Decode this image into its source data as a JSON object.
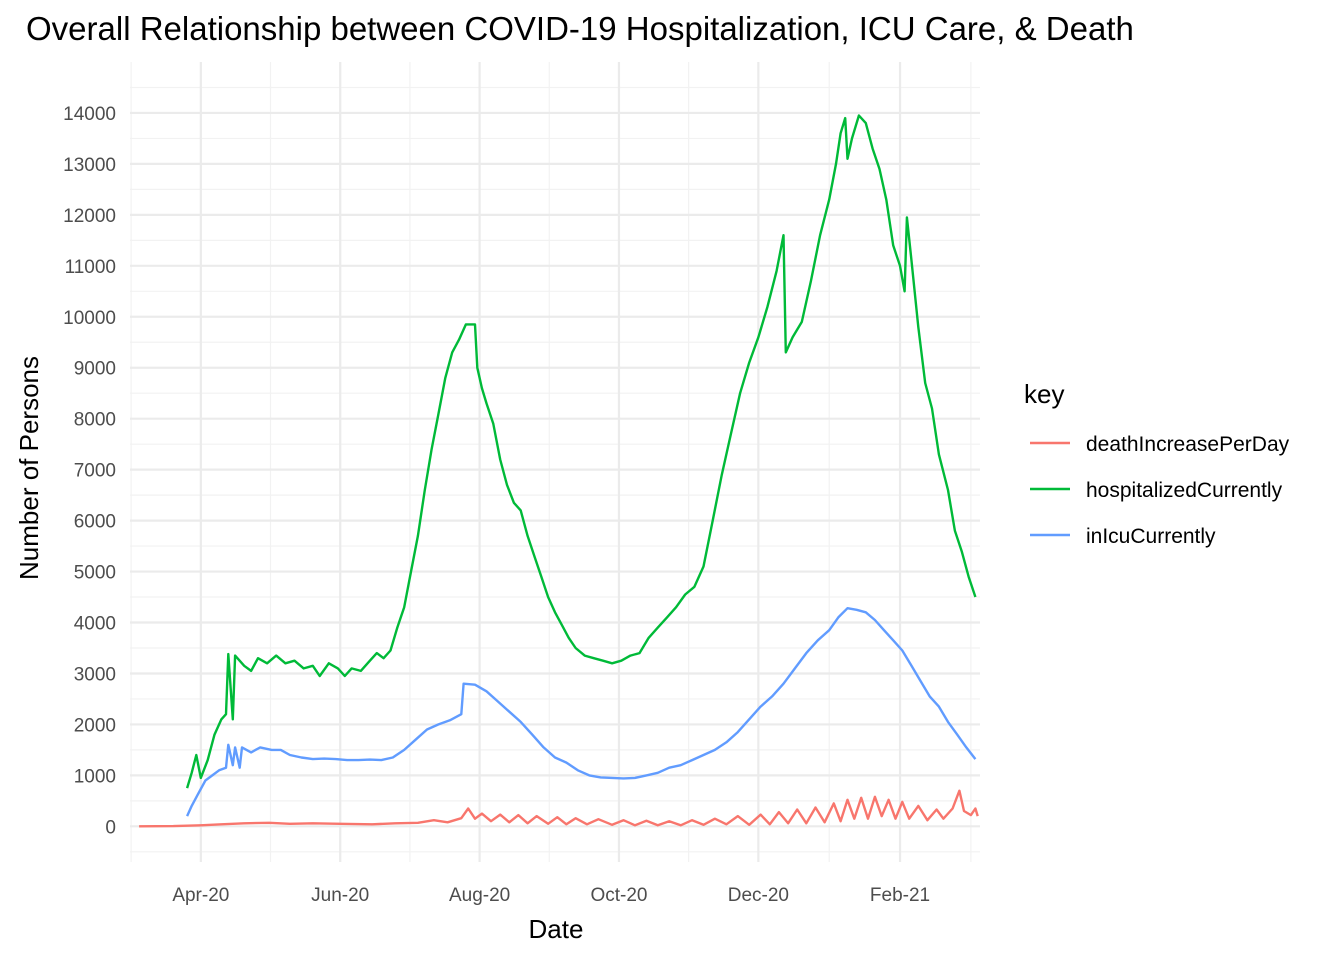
{
  "chart_data": {
    "type": "line",
    "title": "Overall Relationship between COVID-19 Hospitalization, ICU Care, & Death",
    "xlabel": "Date",
    "ylabel": "Number of Persons",
    "x_ticks": [
      "Apr-20",
      "Jun-20",
      "Aug-20",
      "Oct-20",
      "Dec-20",
      "Feb-21"
    ],
    "x_tick_dates": [
      "2020-04-01",
      "2020-06-01",
      "2020-08-01",
      "2020-10-01",
      "2020-12-01",
      "2021-02-01"
    ],
    "xlim": [
      "2020-03-01",
      "2021-03-08"
    ],
    "y_ticks": [
      0,
      1000,
      2000,
      3000,
      4000,
      5000,
      6000,
      7000,
      8000,
      9000,
      10000,
      11000,
      12000,
      13000,
      14000
    ],
    "ylim": [
      -700,
      15000
    ],
    "grid": true,
    "legend": {
      "title": "key",
      "position": "right"
    },
    "series": [
      {
        "name": "deathIncreasePerDay",
        "color": "#F8766D",
        "points": [
          [
            "2020-03-05",
            0
          ],
          [
            "2020-03-20",
            5
          ],
          [
            "2020-04-01",
            20
          ],
          [
            "2020-04-10",
            40
          ],
          [
            "2020-04-20",
            60
          ],
          [
            "2020-05-01",
            70
          ],
          [
            "2020-05-10",
            50
          ],
          [
            "2020-05-20",
            60
          ],
          [
            "2020-06-01",
            50
          ],
          [
            "2020-06-15",
            40
          ],
          [
            "2020-06-25",
            60
          ],
          [
            "2020-07-05",
            70
          ],
          [
            "2020-07-12",
            120
          ],
          [
            "2020-07-18",
            80
          ],
          [
            "2020-07-24",
            160
          ],
          [
            "2020-07-27",
            350
          ],
          [
            "2020-07-30",
            150
          ],
          [
            "2020-08-02",
            250
          ],
          [
            "2020-08-06",
            100
          ],
          [
            "2020-08-10",
            230
          ],
          [
            "2020-08-14",
            80
          ],
          [
            "2020-08-18",
            220
          ],
          [
            "2020-08-22",
            60
          ],
          [
            "2020-08-26",
            200
          ],
          [
            "2020-08-31",
            50
          ],
          [
            "2020-09-04",
            180
          ],
          [
            "2020-09-08",
            40
          ],
          [
            "2020-09-12",
            160
          ],
          [
            "2020-09-17",
            40
          ],
          [
            "2020-09-22",
            140
          ],
          [
            "2020-09-28",
            30
          ],
          [
            "2020-10-03",
            120
          ],
          [
            "2020-10-08",
            20
          ],
          [
            "2020-10-13",
            110
          ],
          [
            "2020-10-18",
            20
          ],
          [
            "2020-10-23",
            100
          ],
          [
            "2020-10-28",
            20
          ],
          [
            "2020-11-02",
            120
          ],
          [
            "2020-11-07",
            30
          ],
          [
            "2020-11-12",
            150
          ],
          [
            "2020-11-17",
            40
          ],
          [
            "2020-11-22",
            200
          ],
          [
            "2020-11-27",
            30
          ],
          [
            "2020-12-02",
            230
          ],
          [
            "2020-12-06",
            40
          ],
          [
            "2020-12-10",
            280
          ],
          [
            "2020-12-14",
            60
          ],
          [
            "2020-12-18",
            330
          ],
          [
            "2020-12-22",
            60
          ],
          [
            "2020-12-26",
            370
          ],
          [
            "2020-12-30",
            80
          ],
          [
            "2021-01-03",
            450
          ],
          [
            "2021-01-06",
            100
          ],
          [
            "2021-01-09",
            520
          ],
          [
            "2021-01-12",
            150
          ],
          [
            "2021-01-15",
            560
          ],
          [
            "2021-01-18",
            150
          ],
          [
            "2021-01-21",
            580
          ],
          [
            "2021-01-24",
            200
          ],
          [
            "2021-01-27",
            520
          ],
          [
            "2021-01-30",
            150
          ],
          [
            "2021-02-02",
            480
          ],
          [
            "2021-02-05",
            150
          ],
          [
            "2021-02-09",
            400
          ],
          [
            "2021-02-13",
            120
          ],
          [
            "2021-02-17",
            330
          ],
          [
            "2021-02-20",
            150
          ],
          [
            "2021-02-24",
            350
          ],
          [
            "2021-02-27",
            700
          ],
          [
            "2021-03-01",
            300
          ],
          [
            "2021-03-04",
            220
          ],
          [
            "2021-03-06",
            350
          ],
          [
            "2021-03-07",
            200
          ]
        ]
      },
      {
        "name": "hospitalizedCurrently",
        "color": "#00BA38",
        "points": [
          [
            "2020-03-26",
            750
          ],
          [
            "2020-03-28",
            1050
          ],
          [
            "2020-03-30",
            1400
          ],
          [
            "2020-04-01",
            950
          ],
          [
            "2020-04-04",
            1300
          ],
          [
            "2020-04-07",
            1800
          ],
          [
            "2020-04-10",
            2100
          ],
          [
            "2020-04-12",
            2200
          ],
          [
            "2020-04-13",
            3380
          ],
          [
            "2020-04-15",
            2100
          ],
          [
            "2020-04-16",
            3350
          ],
          [
            "2020-04-20",
            3150
          ],
          [
            "2020-04-23",
            3050
          ],
          [
            "2020-04-26",
            3300
          ],
          [
            "2020-04-30",
            3200
          ],
          [
            "2020-05-04",
            3350
          ],
          [
            "2020-05-08",
            3200
          ],
          [
            "2020-05-12",
            3250
          ],
          [
            "2020-05-16",
            3100
          ],
          [
            "2020-05-20",
            3150
          ],
          [
            "2020-05-23",
            2950
          ],
          [
            "2020-05-27",
            3200
          ],
          [
            "2020-05-31",
            3100
          ],
          [
            "2020-06-03",
            2950
          ],
          [
            "2020-06-06",
            3100
          ],
          [
            "2020-06-10",
            3050
          ],
          [
            "2020-06-14",
            3250
          ],
          [
            "2020-06-17",
            3400
          ],
          [
            "2020-06-20",
            3300
          ],
          [
            "2020-06-23",
            3450
          ],
          [
            "2020-06-26",
            3900
          ],
          [
            "2020-06-29",
            4300
          ],
          [
            "2020-07-02",
            5000
          ],
          [
            "2020-07-05",
            5700
          ],
          [
            "2020-07-08",
            6600
          ],
          [
            "2020-07-11",
            7400
          ],
          [
            "2020-07-14",
            8100
          ],
          [
            "2020-07-17",
            8800
          ],
          [
            "2020-07-20",
            9300
          ],
          [
            "2020-07-23",
            9550
          ],
          [
            "2020-07-26",
            9850
          ],
          [
            "2020-07-30",
            9850
          ],
          [
            "2020-07-31",
            9000
          ],
          [
            "2020-08-02",
            8600
          ],
          [
            "2020-08-04",
            8300
          ],
          [
            "2020-08-07",
            7900
          ],
          [
            "2020-08-10",
            7200
          ],
          [
            "2020-08-13",
            6700
          ],
          [
            "2020-08-16",
            6350
          ],
          [
            "2020-08-19",
            6200
          ],
          [
            "2020-08-22",
            5700
          ],
          [
            "2020-08-25",
            5300
          ],
          [
            "2020-08-28",
            4900
          ],
          [
            "2020-08-31",
            4500
          ],
          [
            "2020-09-03",
            4200
          ],
          [
            "2020-09-06",
            3950
          ],
          [
            "2020-09-09",
            3700
          ],
          [
            "2020-09-12",
            3500
          ],
          [
            "2020-09-16",
            3350
          ],
          [
            "2020-09-20",
            3300
          ],
          [
            "2020-09-24",
            3250
          ],
          [
            "2020-09-28",
            3200
          ],
          [
            "2020-10-02",
            3250
          ],
          [
            "2020-10-06",
            3350
          ],
          [
            "2020-10-10",
            3400
          ],
          [
            "2020-10-14",
            3700
          ],
          [
            "2020-10-18",
            3900
          ],
          [
            "2020-10-22",
            4100
          ],
          [
            "2020-10-26",
            4300
          ],
          [
            "2020-10-30",
            4550
          ],
          [
            "2020-11-03",
            4700
          ],
          [
            "2020-11-07",
            5100
          ],
          [
            "2020-11-11",
            6000
          ],
          [
            "2020-11-15",
            6900
          ],
          [
            "2020-11-19",
            7700
          ],
          [
            "2020-11-23",
            8500
          ],
          [
            "2020-11-27",
            9100
          ],
          [
            "2020-12-01",
            9600
          ],
          [
            "2020-12-05",
            10200
          ],
          [
            "2020-12-09",
            10900
          ],
          [
            "2020-12-12",
            11600
          ],
          [
            "2020-12-13",
            9300
          ],
          [
            "2020-12-16",
            9600
          ],
          [
            "2020-12-20",
            9900
          ],
          [
            "2020-12-24",
            10700
          ],
          [
            "2020-12-28",
            11600
          ],
          [
            "2021-01-01",
            12300
          ],
          [
            "2021-01-04",
            13000
          ],
          [
            "2021-01-06",
            13600
          ],
          [
            "2021-01-08",
            13900
          ],
          [
            "2021-01-09",
            13100
          ],
          [
            "2021-01-11",
            13500
          ],
          [
            "2021-01-14",
            13950
          ],
          [
            "2021-01-17",
            13800
          ],
          [
            "2021-01-20",
            13300
          ],
          [
            "2021-01-23",
            12900
          ],
          [
            "2021-01-26",
            12300
          ],
          [
            "2021-01-29",
            11400
          ],
          [
            "2021-02-01",
            11000
          ],
          [
            "2021-02-03",
            10500
          ],
          [
            "2021-02-04",
            11950
          ],
          [
            "2021-02-06",
            11100
          ],
          [
            "2021-02-09",
            9800
          ],
          [
            "2021-02-12",
            8700
          ],
          [
            "2021-02-15",
            8200
          ],
          [
            "2021-02-18",
            7300
          ],
          [
            "2021-02-22",
            6600
          ],
          [
            "2021-02-25",
            5800
          ],
          [
            "2021-02-28",
            5400
          ],
          [
            "2021-03-03",
            4900
          ],
          [
            "2021-03-06",
            4500
          ]
        ]
      },
      {
        "name": "inIcuCurrently",
        "color": "#619CFF",
        "points": [
          [
            "2020-03-26",
            200
          ],
          [
            "2020-03-28",
            400
          ],
          [
            "2020-03-31",
            650
          ],
          [
            "2020-04-03",
            900
          ],
          [
            "2020-04-06",
            1000
          ],
          [
            "2020-04-09",
            1100
          ],
          [
            "2020-04-12",
            1150
          ],
          [
            "2020-04-13",
            1600
          ],
          [
            "2020-04-15",
            1200
          ],
          [
            "2020-04-16",
            1550
          ],
          [
            "2020-04-18",
            1150
          ],
          [
            "2020-04-19",
            1550
          ],
          [
            "2020-04-23",
            1450
          ],
          [
            "2020-04-27",
            1550
          ],
          [
            "2020-05-02",
            1500
          ],
          [
            "2020-05-06",
            1500
          ],
          [
            "2020-05-10",
            1400
          ],
          [
            "2020-05-15",
            1350
          ],
          [
            "2020-05-20",
            1320
          ],
          [
            "2020-05-25",
            1330
          ],
          [
            "2020-05-30",
            1320
          ],
          [
            "2020-06-04",
            1300
          ],
          [
            "2020-06-09",
            1300
          ],
          [
            "2020-06-14",
            1310
          ],
          [
            "2020-06-19",
            1300
          ],
          [
            "2020-06-24",
            1350
          ],
          [
            "2020-06-29",
            1500
          ],
          [
            "2020-07-04",
            1700
          ],
          [
            "2020-07-09",
            1900
          ],
          [
            "2020-07-14",
            2000
          ],
          [
            "2020-07-19",
            2080
          ],
          [
            "2020-07-24",
            2200
          ],
          [
            "2020-07-25",
            2800
          ],
          [
            "2020-07-30",
            2780
          ],
          [
            "2020-08-04",
            2650
          ],
          [
            "2020-08-09",
            2450
          ],
          [
            "2020-08-14",
            2250
          ],
          [
            "2020-08-19",
            2050
          ],
          [
            "2020-08-24",
            1800
          ],
          [
            "2020-08-29",
            1550
          ],
          [
            "2020-09-03",
            1350
          ],
          [
            "2020-09-08",
            1250
          ],
          [
            "2020-09-13",
            1100
          ],
          [
            "2020-09-18",
            1000
          ],
          [
            "2020-09-23",
            960
          ],
          [
            "2020-09-28",
            950
          ],
          [
            "2020-10-03",
            940
          ],
          [
            "2020-10-08",
            950
          ],
          [
            "2020-10-13",
            1000
          ],
          [
            "2020-10-18",
            1050
          ],
          [
            "2020-10-23",
            1150
          ],
          [
            "2020-10-28",
            1200
          ],
          [
            "2020-11-02",
            1300
          ],
          [
            "2020-11-07",
            1400
          ],
          [
            "2020-11-12",
            1500
          ],
          [
            "2020-11-17",
            1650
          ],
          [
            "2020-11-22",
            1850
          ],
          [
            "2020-11-27",
            2100
          ],
          [
            "2020-12-02",
            2350
          ],
          [
            "2020-12-07",
            2550
          ],
          [
            "2020-12-12",
            2800
          ],
          [
            "2020-12-17",
            3100
          ],
          [
            "2020-12-22",
            3400
          ],
          [
            "2020-12-27",
            3650
          ],
          [
            "2021-01-01",
            3850
          ],
          [
            "2021-01-05",
            4100
          ],
          [
            "2021-01-09",
            4280
          ],
          [
            "2021-01-13",
            4250
          ],
          [
            "2021-01-17",
            4200
          ],
          [
            "2021-01-21",
            4050
          ],
          [
            "2021-01-25",
            3850
          ],
          [
            "2021-01-29",
            3650
          ],
          [
            "2021-02-02",
            3450
          ],
          [
            "2021-02-06",
            3150
          ],
          [
            "2021-02-10",
            2850
          ],
          [
            "2021-02-14",
            2550
          ],
          [
            "2021-02-18",
            2350
          ],
          [
            "2021-02-22",
            2050
          ],
          [
            "2021-02-26",
            1800
          ],
          [
            "2021-03-02",
            1550
          ],
          [
            "2021-03-06",
            1320
          ]
        ]
      }
    ]
  }
}
